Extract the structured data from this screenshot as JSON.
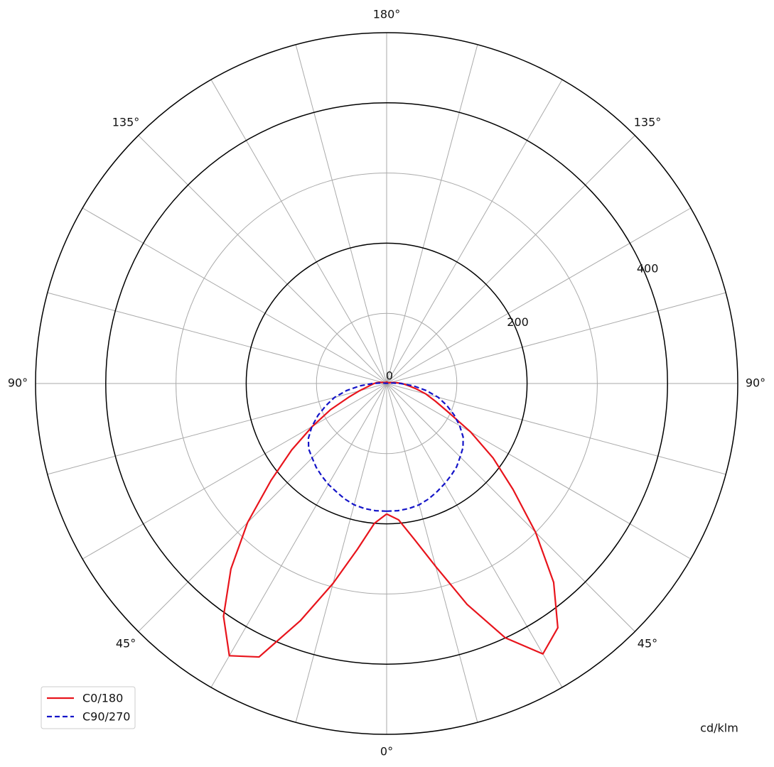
{
  "chart_data": {
    "type": "polar",
    "unit_label": "cd/klm",
    "x": [
      0,
      5,
      10,
      15,
      20,
      25,
      30,
      35,
      40,
      45,
      50,
      55,
      60,
      65,
      70,
      75,
      80,
      85,
      90,
      95,
      100,
      105,
      110,
      115,
      120,
      125,
      130,
      135,
      140,
      145,
      150,
      155,
      160,
      165,
      170,
      175,
      180
    ],
    "xticks": [
      {
        "value": 0,
        "label": "0°"
      },
      {
        "value": 45,
        "label": "45°"
      },
      {
        "value": 90,
        "label": "90°"
      },
      {
        "value": 135,
        "label": "135°"
      },
      {
        "value": 180,
        "label": "180°"
      }
    ],
    "xgrid": [
      0,
      15,
      30,
      45,
      60,
      75,
      90,
      105,
      120,
      135,
      150,
      165,
      180
    ],
    "ylim": [
      0,
      500
    ],
    "yticks": [
      0,
      200,
      400
    ],
    "yminor": [
      100,
      300
    ],
    "legend": "lower left",
    "series": [
      {
        "name": "C0/180",
        "color": "#e8141c",
        "dash": false,
        "halves": [
          {
            "side": "right",
            "values": [
              186,
              195,
              225,
              270,
              335,
              400,
              445,
              425,
              370,
              300,
              235,
              185,
              138,
              97,
              74,
              58,
              42,
              30,
              22,
              14,
              8,
              5,
              3,
              2,
              2,
              2,
              2,
              2,
              2,
              2,
              2,
              2,
              2,
              2,
              2,
              2,
              2
            ]
          },
          {
            "side": "left",
            "values": [
              186,
              200,
              240,
              295,
              360,
              430,
              448,
              405,
              345,
              280,
              215,
              165,
              122,
              88,
              58,
              40,
              28,
              22,
              18,
              14,
              10,
              6,
              4,
              3,
              2,
              2,
              2,
              2,
              2,
              2,
              2,
              2,
              2,
              2,
              2,
              2,
              2
            ]
          }
        ]
      },
      {
        "name": "C90/270",
        "color": "#1414c8",
        "dash": true,
        "halves": [
          {
            "side": "right",
            "values": [
              182,
              182,
              181,
              179,
              175,
              170,
              165,
              160,
              155,
              148,
              142,
              133,
              120,
              106,
              91,
              76,
              57,
              38,
              20,
              8,
              3,
              1,
              0,
              0,
              0,
              0,
              0,
              0,
              0,
              0,
              0,
              0,
              0,
              0,
              0,
              0,
              0
            ]
          },
          {
            "side": "left",
            "values": [
              182,
              182,
              181,
              179,
              175,
              170,
              166,
              161,
              156,
              150,
              145,
              136,
              123,
              108,
              92,
              77,
              58,
              38,
              20,
              8,
              3,
              1,
              0,
              0,
              0,
              0,
              0,
              0,
              0,
              0,
              0,
              0,
              0,
              0,
              0,
              0,
              0
            ]
          }
        ]
      }
    ]
  }
}
